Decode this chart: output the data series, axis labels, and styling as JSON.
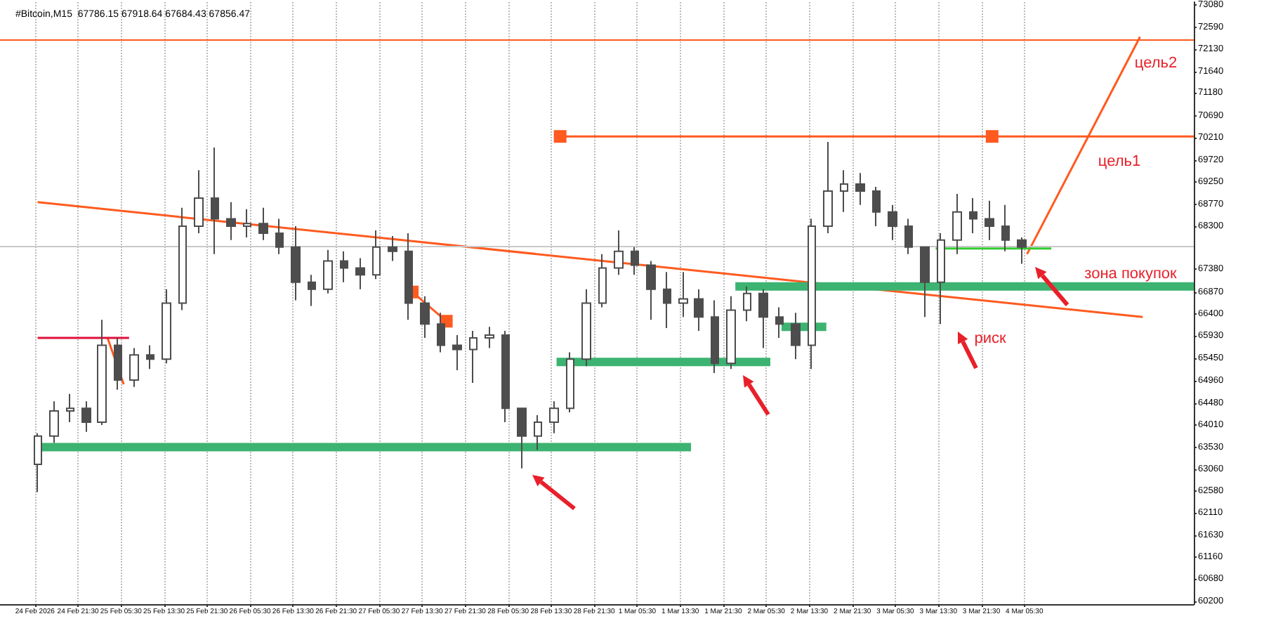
{
  "chart_data": {
    "type": "candlestick",
    "title": "#Bitcoin,M15  67786.15 67918.64 67684.43 67856.47",
    "color": "#4d4d4d",
    "x": [
      "2026-02-24T14:00",
      "2026-02-24T17:00",
      "2026-02-24T20:00",
      "2026-02-24T23:00",
      "2026-02-25T02:00",
      "2026-02-25T05:00",
      "2026-02-25T08:00",
      "2026-02-25T11:00",
      "2026-02-25T14:00",
      "2026-02-25T17:00",
      "2026-02-25T20:00",
      "2026-02-25T23:00",
      "2026-02-26T02:00",
      "2026-02-26T05:00",
      "2026-02-26T08:00",
      "2026-02-26T11:00",
      "2026-02-26T14:00",
      "2026-02-26T17:00",
      "2026-02-26T20:00",
      "2026-02-26T23:00",
      "2026-02-27T02:00",
      "2026-02-27T05:00",
      "2026-02-27T08:00",
      "2026-02-27T11:00",
      "2026-02-27T14:00",
      "2026-02-27T17:00",
      "2026-02-27T20:00",
      "2026-02-27T23:00",
      "2026-02-28T02:00",
      "2026-02-28T05:00",
      "2026-02-28T08:00",
      "2026-02-28T11:00",
      "2026-02-28T14:00",
      "2026-02-28T17:00",
      "2026-02-28T20:00",
      "2026-02-28T23:00",
      "2026-03-01T02:00",
      "2026-03-01T05:00",
      "2026-03-01T08:00",
      "2026-03-01T11:00",
      "2026-03-01T14:00",
      "2026-03-01T17:00",
      "2026-03-01T20:00",
      "2026-03-01T23:00",
      "2026-03-02T02:00",
      "2026-03-02T05:00",
      "2026-03-02T08:00",
      "2026-03-02T11:00",
      "2026-03-02T14:00",
      "2026-03-02T17:00",
      "2026-03-02T20:00",
      "2026-03-02T23:00",
      "2026-03-03T02:00",
      "2026-03-03T05:00",
      "2026-03-03T08:00",
      "2026-03-03T11:00",
      "2026-03-03T14:00",
      "2026-03-03T17:00",
      "2026-03-03T20:00",
      "2026-03-03T23:00",
      "2026-03-04T02:00",
      "2026-03-04T05:00"
    ],
    "ohlc": [
      [
        63160,
        63830,
        62560,
        63770
      ],
      [
        63770,
        64520,
        63620,
        64310
      ],
      [
        64310,
        64680,
        64070,
        64370
      ],
      [
        64370,
        64520,
        63860,
        64070
      ],
      [
        64070,
        66280,
        64010,
        65730
      ],
      [
        65730,
        65890,
        64770,
        64980
      ],
      [
        64980,
        65670,
        64830,
        65520
      ],
      [
        65520,
        65730,
        65220,
        65430
      ],
      [
        65430,
        66940,
        65340,
        66640
      ],
      [
        66640,
        68700,
        66490,
        68300
      ],
      [
        68300,
        69510,
        68150,
        68910
      ],
      [
        68910,
        70000,
        67700,
        68460
      ],
      [
        68460,
        68820,
        68000,
        68300
      ],
      [
        68300,
        68670,
        68060,
        68360
      ],
      [
        68360,
        68700,
        68000,
        68150
      ],
      [
        68150,
        68460,
        67700,
        67850
      ],
      [
        67850,
        68300,
        66700,
        67090
      ],
      [
        67090,
        67250,
        66580,
        66940
      ],
      [
        66940,
        67790,
        66850,
        67550
      ],
      [
        67550,
        67760,
        67090,
        67400
      ],
      [
        67400,
        67610,
        66940,
        67250
      ],
      [
        67250,
        68210,
        67160,
        67850
      ],
      [
        67850,
        68090,
        67550,
        67760
      ],
      [
        67760,
        68150,
        66280,
        66640
      ],
      [
        66640,
        66790,
        65890,
        66190
      ],
      [
        66190,
        66430,
        65580,
        65730
      ],
      [
        65730,
        65950,
        65190,
        65640
      ],
      [
        65640,
        66040,
        64920,
        65890
      ],
      [
        65890,
        66130,
        65670,
        65950
      ],
      [
        65950,
        66040,
        64070,
        64370
      ],
      [
        64370,
        64370,
        63070,
        63770
      ],
      [
        63770,
        64220,
        63470,
        64070
      ],
      [
        64070,
        64520,
        63830,
        64370
      ],
      [
        64370,
        65580,
        64280,
        65430
      ],
      [
        65430,
        66940,
        65280,
        66640
      ],
      [
        66640,
        67700,
        66550,
        67400
      ],
      [
        67400,
        68210,
        67250,
        67760
      ],
      [
        67760,
        67850,
        67250,
        67460
      ],
      [
        67460,
        67550,
        66280,
        66940
      ],
      [
        66940,
        67310,
        66100,
        66640
      ],
      [
        66640,
        67310,
        66340,
        66730
      ],
      [
        66730,
        66940,
        66040,
        66340
      ],
      [
        66340,
        66700,
        65130,
        65340
      ],
      [
        65340,
        66790,
        65220,
        66490
      ],
      [
        66490,
        67000,
        66250,
        66850
      ],
      [
        66850,
        66940,
        65670,
        66340
      ],
      [
        66340,
        66550,
        65890,
        66190
      ],
      [
        66190,
        66430,
        65430,
        65730
      ],
      [
        65730,
        68460,
        65220,
        68300
      ],
      [
        68300,
        70120,
        68150,
        69060
      ],
      [
        69060,
        69510,
        68610,
        69210
      ],
      [
        69210,
        69450,
        68760,
        69060
      ],
      [
        69060,
        69150,
        68300,
        68610
      ],
      [
        68610,
        68760,
        68000,
        68300
      ],
      [
        68300,
        68460,
        67700,
        67850
      ],
      [
        67850,
        67850,
        66340,
        67090
      ],
      [
        67090,
        68150,
        66190,
        68000
      ],
      [
        68000,
        69000,
        67700,
        68610
      ],
      [
        68610,
        68910,
        68150,
        68460
      ],
      [
        68460,
        68850,
        68000,
        68300
      ],
      [
        68300,
        68760,
        67760,
        68000
      ],
      [
        68000,
        68060,
        67490,
        67850
      ]
    ],
    "series": [
      {
        "type": "line",
        "color": "#ff5a1f",
        "marker": "none",
        "x": [
          "2026-02-24T14:00",
          "2026-03-05T03:30"
        ],
        "values": [
          68820,
          66340
        ]
      },
      {
        "type": "line",
        "color": "#ff5a1f",
        "marker": "square",
        "x": [
          "2026-02-28T15:10",
          "2026-03-03T23:30",
          "2026-03-05T13:00"
        ],
        "values": [
          70240,
          70240,
          70240
        ]
      },
      {
        "type": "line",
        "color": "#ff5a1f",
        "marker": "none",
        "x": [
          "2026-02-25T03:00",
          "2026-02-25T06:00"
        ],
        "values": [
          65890,
          64890
        ]
      },
      {
        "type": "line",
        "color": "#ff5a1f",
        "marker": "square",
        "x": [
          "2026-02-27T11:40",
          "2026-02-27T18:00"
        ],
        "values": [
          66880,
          66250
        ]
      },
      {
        "type": "line",
        "color": "#ff5a1f",
        "marker": "none",
        "x": [
          "2026-03-04T06:00",
          "2026-03-05T03:00"
        ],
        "values": [
          67700,
          72390
        ]
      },
      {
        "type": "line",
        "color": "#3cb371",
        "marker": "none",
        "x": [
          "2026-02-24T14:00",
          "2026-03-01T15:30"
        ],
        "values": [
          63530,
          63530
        ]
      },
      {
        "type": "line",
        "color": "#3cb371",
        "marker": "none",
        "x": [
          "2026-02-28T14:30",
          "2026-03-02T06:15"
        ],
        "values": [
          65370,
          65370
        ]
      },
      {
        "type": "line",
        "color": "#3cb371",
        "marker": "none",
        "x": [
          "2026-03-01T23:45",
          "2026-03-05T13:00"
        ],
        "values": [
          67000,
          67000
        ]
      },
      {
        "type": "line",
        "color": "#3cb371",
        "marker": "none",
        "x": [
          "2026-03-02T08:20",
          "2026-03-02T16:40"
        ],
        "values": [
          66130,
          66130
        ]
      },
      {
        "type": "line",
        "color": "#33cc33",
        "marker": "none",
        "x": [
          "2026-03-03T13:00",
          "2026-03-04T10:30"
        ],
        "values": [
          67820,
          67820
        ]
      },
      {
        "type": "line",
        "color": "#e0103a",
        "marker": "none",
        "x": [
          "2026-02-24T14:00",
          "2026-02-25T07:00"
        ],
        "values": [
          65890,
          65890
        ]
      }
    ],
    "ref_lines": [
      {
        "axis": "y",
        "value": 72330,
        "color": "#ff5a1f"
      },
      {
        "axis": "y",
        "value": 67856.47,
        "color": "#c8c8c8"
      }
    ],
    "annotations": [
      "цель2",
      "цель1",
      "зона покупок",
      "риск"
    ],
    "xlim": [
      "2026-02-24T07:00",
      "2026-03-05T13:00"
    ],
    "ylim": [
      60140,
      73140
    ],
    "xticks": [
      {
        "value": "2026-02-24T13:30",
        "label": "24 Feb 2026"
      },
      {
        "value": "2026-02-24T21:30",
        "label": "24 Feb 21:30"
      },
      {
        "value": "2026-02-25T05:30",
        "label": "25 Feb 05:30"
      },
      {
        "value": "2026-02-25T13:30",
        "label": "25 Feb 13:30"
      },
      {
        "value": "2026-02-25T21:30",
        "label": "25 Feb 21:30"
      },
      {
        "value": "2026-02-26T05:30",
        "label": "26 Feb 05:30"
      },
      {
        "value": "2026-02-26T13:30",
        "label": "26 Feb 13:30"
      },
      {
        "value": "2026-02-26T21:30",
        "label": "26 Feb 21:30"
      },
      {
        "value": "2026-02-27T05:30",
        "label": "27 Feb 05:30"
      },
      {
        "value": "2026-02-27T13:30",
        "label": "27 Feb 13:30"
      },
      {
        "value": "2026-02-27T21:30",
        "label": "27 Feb 21:30"
      },
      {
        "value": "2026-02-28T05:30",
        "label": "28 Feb 05:30"
      },
      {
        "value": "2026-02-28T13:30",
        "label": "28 Feb 13:30"
      },
      {
        "value": "2026-02-28T21:30",
        "label": "28 Feb 21:30"
      },
      {
        "value": "2026-03-01T05:30",
        "label": "1 Mar 05:30"
      },
      {
        "value": "2026-03-01T13:30",
        "label": "1 Mar 13:30"
      },
      {
        "value": "2026-03-01T21:30",
        "label": "1 Mar 21:30"
      },
      {
        "value": "2026-03-02T05:30",
        "label": "2 Mar 05:30"
      },
      {
        "value": "2026-03-02T13:30",
        "label": "2 Mar 13:30"
      },
      {
        "value": "2026-03-02T21:30",
        "label": "2 Mar 21:30"
      },
      {
        "value": "2026-03-03T05:30",
        "label": "3 Mar 05:30"
      },
      {
        "value": "2026-03-03T13:30",
        "label": "3 Mar 13:30"
      },
      {
        "value": "2026-03-03T21:30",
        "label": "3 Mar 21:30"
      },
      {
        "value": "2026-03-04T05:30",
        "label": "4 Mar 05:30"
      }
    ],
    "yticks": [
      60200,
      60680,
      61160,
      61630,
      62110,
      62580,
      63060,
      63530,
      64010,
      64480,
      64960,
      65450,
      65930,
      66400,
      66870,
      67380,
      68300,
      68770,
      69250,
      69720,
      70210,
      70690,
      71180,
      71640,
      72130,
      72590,
      73080
    ],
    "grid": "x"
  }
}
